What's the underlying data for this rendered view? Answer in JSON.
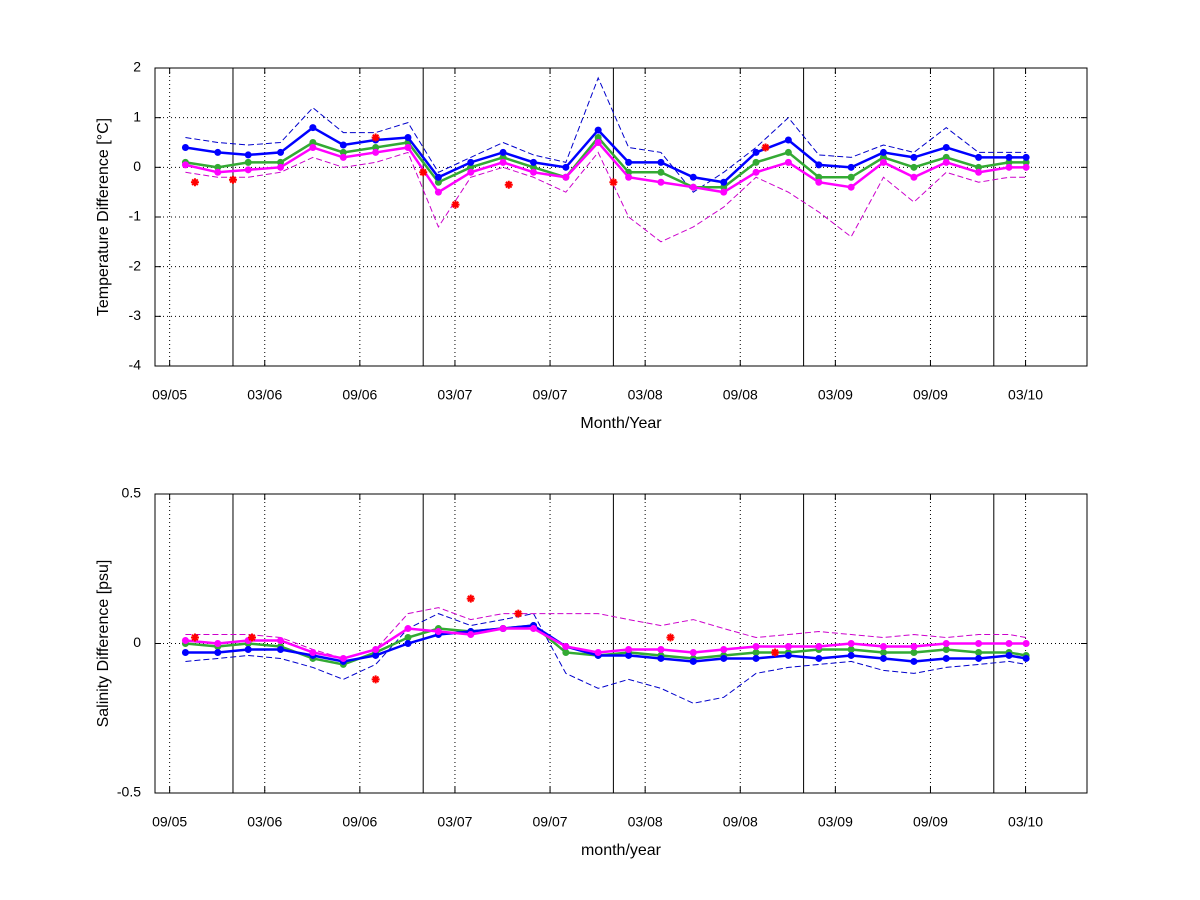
{
  "chart_data": [
    {
      "type": "line",
      "ylabel": "Temperature Difference [°C]",
      "xlabel": "Month/Year",
      "xlim": [
        2005.59,
        2010.49
      ],
      "ylim": [
        -4,
        2
      ],
      "yticks": [
        -4,
        -3,
        -2,
        -1,
        0,
        1,
        2
      ],
      "xticks": [
        {
          "value": 2005.667,
          "label": "09/05"
        },
        {
          "value": 2006.167,
          "label": "03/06"
        },
        {
          "value": 2006.667,
          "label": "09/06"
        },
        {
          "value": 2007.167,
          "label": "03/07"
        },
        {
          "value": 2007.667,
          "label": "09/07"
        },
        {
          "value": 2008.167,
          "label": "03/08"
        },
        {
          "value": 2008.667,
          "label": "09/08"
        },
        {
          "value": 2009.167,
          "label": "03/09"
        },
        {
          "value": 2009.667,
          "label": "09/09"
        },
        {
          "value": 2010.167,
          "label": "03/10"
        }
      ],
      "vlines": [
        2006,
        2007,
        2008,
        2009,
        2010
      ],
      "grid": true,
      "x": [
        2005.75,
        2005.92,
        2006.08,
        2006.25,
        2006.42,
        2006.58,
        2006.75,
        2006.92,
        2007.08,
        2007.25,
        2007.42,
        2007.58,
        2007.75,
        2007.92,
        2008.08,
        2008.25,
        2008.42,
        2008.58,
        2008.75,
        2008.92,
        2009.08,
        2009.25,
        2009.42,
        2009.58,
        2009.75,
        2009.92,
        2010.08,
        2010.17
      ],
      "series": [
        {
          "style": "dashed",
          "color": "#0000cc",
          "values": [
            0.6,
            0.5,
            0.45,
            0.5,
            1.2,
            0.7,
            0.7,
            0.9,
            -0.1,
            0.2,
            0.5,
            0.25,
            0.1,
            1.8,
            0.4,
            0.3,
            -0.5,
            -0.1,
            0.4,
            1.0,
            0.25,
            0.2,
            0.45,
            0.3,
            0.8,
            0.3,
            0.3,
            0.3
          ]
        },
        {
          "style": "dashed",
          "color": "#cc00cc",
          "values": [
            -0.1,
            -0.2,
            -0.2,
            -0.1,
            0.2,
            0.0,
            0.1,
            0.3,
            -1.2,
            -0.2,
            0.0,
            -0.2,
            -0.5,
            0.3,
            -1.0,
            -1.5,
            -1.2,
            -0.8,
            -0.2,
            -0.5,
            -0.9,
            -1.4,
            -0.2,
            -0.7,
            -0.1,
            -0.3,
            -0.2,
            -0.2
          ]
        },
        {
          "style": "marker",
          "color": "#33aa33",
          "values": [
            0.1,
            0.0,
            0.1,
            0.1,
            0.5,
            0.3,
            0.4,
            0.5,
            -0.3,
            0.0,
            0.2,
            0.0,
            -0.2,
            0.6,
            -0.1,
            -0.1,
            -0.4,
            -0.4,
            0.1,
            0.3,
            -0.2,
            -0.2,
            0.2,
            0.0,
            0.2,
            0.0,
            0.1,
            0.1
          ]
        },
        {
          "style": "marker",
          "color": "#0000ff",
          "values": [
            0.4,
            0.3,
            0.25,
            0.3,
            0.8,
            0.45,
            0.55,
            0.6,
            -0.2,
            0.1,
            0.3,
            0.1,
            0.0,
            0.75,
            0.1,
            0.1,
            -0.2,
            -0.3,
            0.3,
            0.55,
            0.05,
            0.0,
            0.3,
            0.2,
            0.4,
            0.2,
            0.2,
            0.2
          ]
        },
        {
          "style": "marker",
          "color": "#ff00ff",
          "values": [
            0.05,
            -0.1,
            -0.05,
            0.0,
            0.4,
            0.2,
            0.3,
            0.4,
            -0.5,
            -0.1,
            0.1,
            -0.1,
            -0.2,
            0.5,
            -0.2,
            -0.3,
            -0.4,
            -0.5,
            -0.1,
            0.1,
            -0.3,
            -0.4,
            0.1,
            -0.2,
            0.1,
            -0.1,
            0.0,
            0.0
          ]
        },
        {
          "style": "star",
          "color": "#ff0000",
          "x": [
            2005.8,
            2006.0,
            2006.75,
            2007.0,
            2007.17,
            2007.45,
            2008.0,
            2008.8
          ],
          "values": [
            -0.3,
            -0.25,
            0.6,
            -0.1,
            -0.75,
            -0.35,
            -0.3,
            0.4
          ]
        }
      ]
    },
    {
      "type": "line",
      "ylabel": "Salinity Difference [psu]",
      "xlabel": "month/year",
      "xlim": [
        2005.59,
        2010.49
      ],
      "ylim": [
        -0.5,
        0.5
      ],
      "yticks": [
        -0.5,
        0,
        0.5
      ],
      "xticks": [
        {
          "value": 2005.667,
          "label": "09/05"
        },
        {
          "value": 2006.167,
          "label": "03/06"
        },
        {
          "value": 2006.667,
          "label": "09/06"
        },
        {
          "value": 2007.167,
          "label": "03/07"
        },
        {
          "value": 2007.667,
          "label": "09/07"
        },
        {
          "value": 2008.167,
          "label": "03/08"
        },
        {
          "value": 2008.667,
          "label": "09/08"
        },
        {
          "value": 2009.167,
          "label": "03/09"
        },
        {
          "value": 2009.667,
          "label": "09/09"
        },
        {
          "value": 2010.167,
          "label": "03/10"
        }
      ],
      "vlines": [
        2006,
        2007,
        2008,
        2009,
        2010
      ],
      "grid": true,
      "x": [
        2005.75,
        2005.92,
        2006.08,
        2006.25,
        2006.42,
        2006.58,
        2006.75,
        2006.92,
        2007.08,
        2007.25,
        2007.42,
        2007.58,
        2007.75,
        2007.92,
        2008.08,
        2008.25,
        2008.42,
        2008.58,
        2008.75,
        2008.92,
        2009.08,
        2009.25,
        2009.42,
        2009.58,
        2009.75,
        2009.92,
        2010.08,
        2010.17
      ],
      "series": [
        {
          "style": "dashed",
          "color": "#0000cc",
          "values": [
            -0.06,
            -0.05,
            -0.04,
            -0.05,
            -0.08,
            -0.12,
            -0.07,
            0.05,
            0.1,
            0.06,
            0.08,
            0.1,
            -0.1,
            -0.15,
            -0.12,
            -0.15,
            -0.2,
            -0.18,
            -0.1,
            -0.08,
            -0.07,
            -0.06,
            -0.09,
            -0.1,
            -0.08,
            -0.07,
            -0.06,
            -0.07
          ]
        },
        {
          "style": "dashed",
          "color": "#cc00cc",
          "values": [
            0.03,
            0.03,
            0.03,
            0.02,
            -0.02,
            -0.05,
            -0.02,
            0.1,
            0.12,
            0.08,
            0.1,
            0.1,
            0.1,
            0.1,
            0.08,
            0.06,
            0.08,
            0.05,
            0.02,
            0.03,
            0.04,
            0.03,
            0.02,
            0.03,
            0.02,
            0.03,
            0.03,
            0.02
          ]
        },
        {
          "style": "marker",
          "color": "#33aa33",
          "values": [
            0.0,
            -0.01,
            0.0,
            -0.01,
            -0.05,
            -0.07,
            -0.03,
            0.02,
            0.05,
            0.04,
            0.05,
            0.06,
            -0.03,
            -0.04,
            -0.03,
            -0.04,
            -0.05,
            -0.04,
            -0.03,
            -0.03,
            -0.02,
            -0.02,
            -0.03,
            -0.03,
            -0.02,
            -0.03,
            -0.03,
            -0.04
          ]
        },
        {
          "style": "marker",
          "color": "#0000ff",
          "values": [
            -0.03,
            -0.03,
            -0.02,
            -0.02,
            -0.04,
            -0.06,
            -0.04,
            0.0,
            0.03,
            0.04,
            0.05,
            0.06,
            -0.01,
            -0.04,
            -0.04,
            -0.05,
            -0.06,
            -0.05,
            -0.05,
            -0.04,
            -0.05,
            -0.04,
            -0.05,
            -0.06,
            -0.05,
            -0.05,
            -0.04,
            -0.05
          ]
        },
        {
          "style": "marker",
          "color": "#ff00ff",
          "values": [
            0.01,
            0.0,
            0.01,
            0.01,
            -0.03,
            -0.05,
            -0.02,
            0.05,
            0.04,
            0.03,
            0.05,
            0.05,
            -0.01,
            -0.03,
            -0.02,
            -0.02,
            -0.03,
            -0.02,
            -0.01,
            -0.01,
            -0.01,
            0.0,
            -0.01,
            -0.01,
            0.0,
            0.0,
            0.0,
            0.0
          ]
        },
        {
          "style": "star",
          "color": "#ff0000",
          "x": [
            2005.8,
            2006.1,
            2006.75,
            2007.25,
            2007.5,
            2008.3,
            2008.85
          ],
          "values": [
            0.02,
            0.02,
            -0.12,
            0.15,
            0.1,
            0.02,
            -0.03
          ]
        }
      ]
    }
  ]
}
